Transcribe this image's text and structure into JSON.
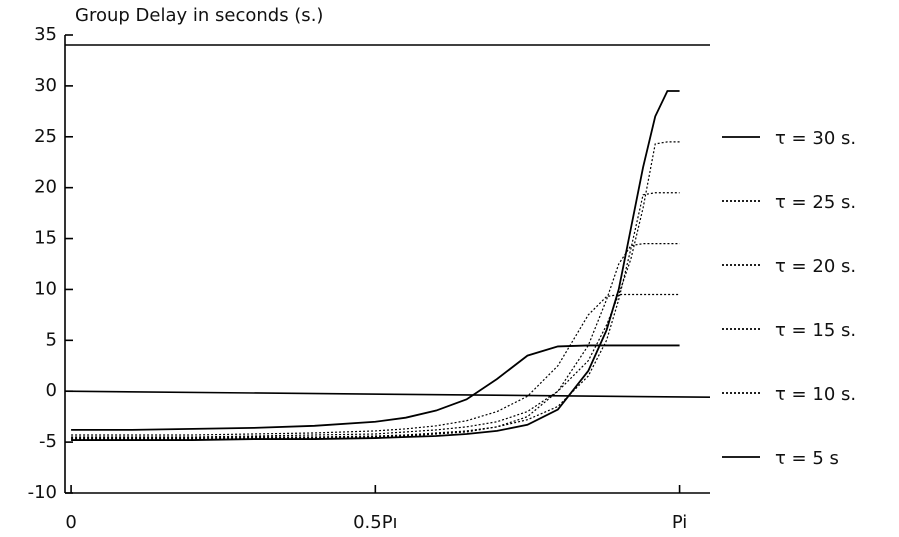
{
  "chart_data": {
    "type": "line",
    "title": "Group Delay in seconds (s.)",
    "x": [
      0,
      0.1,
      0.2,
      0.3,
      0.4,
      0.5,
      0.55,
      0.6,
      0.65,
      0.7,
      0.75,
      0.8,
      0.85,
      0.88,
      0.9,
      0.92,
      0.94,
      0.96,
      0.98,
      1.0
    ],
    "series": [
      {
        "name": "τ = 30 s.",
        "color": "#000000",
        "style": "solid",
        "values": [
          -4.8,
          -4.8,
          -4.8,
          -4.7,
          -4.7,
          -4.6,
          -4.5,
          -4.4,
          -4.2,
          -3.9,
          -3.3,
          -1.8,
          2,
          6,
          10,
          16,
          22,
          27,
          29.5,
          29.5
        ]
      },
      {
        "name": "τ = 25 s.",
        "color": "#000000",
        "style": "dotted",
        "values": [
          -4.7,
          -4.7,
          -4.7,
          -4.6,
          -4.6,
          -4.5,
          -4.4,
          -4.2,
          -4,
          -3.5,
          -2.5,
          0,
          3,
          6.5,
          9.5,
          13,
          18,
          24.3,
          24.5,
          24.5
        ]
      },
      {
        "name": "τ = 20 s.",
        "color": "#000000",
        "style": "dotted",
        "values": [
          -4.6,
          -4.6,
          -4.6,
          -4.5,
          -4.5,
          -4.4,
          -4.3,
          -4.1,
          -3.9,
          -3.5,
          -2.8,
          -1.5,
          1.5,
          5,
          9,
          14,
          19.3,
          19.5,
          19.5,
          19.5
        ]
      },
      {
        "name": "τ = 15 s.",
        "color": "#000000",
        "style": "dotted",
        "values": [
          -4.5,
          -4.5,
          -4.5,
          -4.4,
          -4.3,
          -4.2,
          -4,
          -3.8,
          -3.5,
          -3,
          -2,
          0,
          4.5,
          9,
          12.5,
          14.3,
          14.5,
          14.5,
          14.5,
          14.5
        ]
      },
      {
        "name": "τ = 10 s.",
        "color": "#000000",
        "style": "dotted",
        "values": [
          -4.3,
          -4.3,
          -4.3,
          -4.2,
          -4.1,
          -3.9,
          -3.7,
          -3.4,
          -2.9,
          -2,
          -0.5,
          2.5,
          7.5,
          9.3,
          9.5,
          9.5,
          9.5,
          9.5,
          9.5,
          9.5
        ]
      },
      {
        "name": "τ = 5 s",
        "color": "#000000",
        "style": "solid",
        "values": [
          -3.8,
          -3.8,
          -3.7,
          -3.6,
          -3.4,
          -3,
          -2.6,
          -1.9,
          -0.8,
          1.2,
          3.5,
          4.4,
          4.5,
          4.5,
          4.5,
          4.5,
          4.5,
          4.5,
          4.5,
          4.5
        ]
      }
    ],
    "xlim": [
      -0.01,
      1.05
    ],
    "xticks": [
      0,
      {
        "value": 0.5,
        "label": "0.5Pı"
      },
      {
        "value": 1,
        "label": "Pi"
      }
    ],
    "ylim": [
      -10,
      35
    ],
    "yticks": [
      -10,
      -5,
      0,
      5,
      10,
      15,
      20,
      25,
      30,
      35
    ],
    "legend": "right"
  }
}
